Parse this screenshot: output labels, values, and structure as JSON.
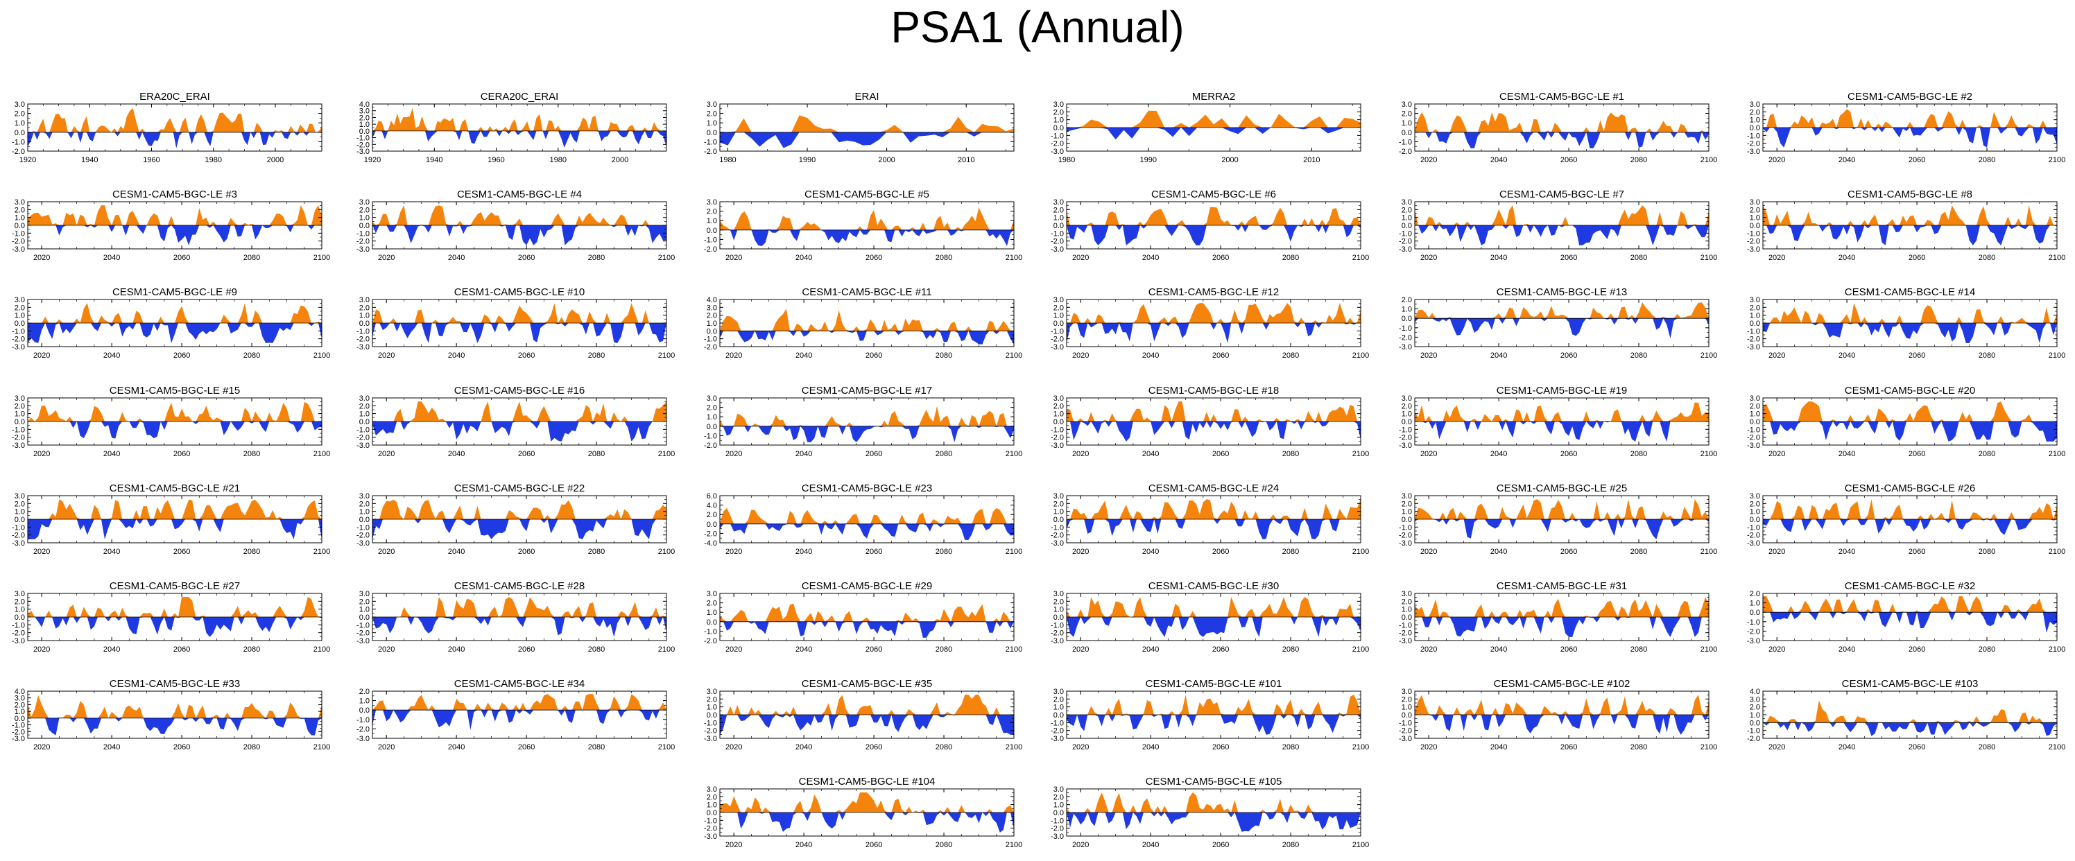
{
  "figure": {
    "title": "PSA1 (Annual)"
  },
  "colors": {
    "positive": "#f5840d",
    "negative": "#1f3ae2",
    "frame": "#000000"
  },
  "chart_data": [
    {
      "type": "area",
      "title": "ERA20C_ERAI",
      "x_range": [
        1920,
        2015
      ],
      "xticks": [
        1920,
        1940,
        1960,
        1980,
        2000
      ],
      "yticks": [
        -2.0,
        -1.0,
        0.0,
        1.0,
        2.0,
        3.0
      ],
      "ylim": [
        -2.0,
        3.0
      ],
      "seed": 11
    },
    {
      "type": "area",
      "title": "CERA20C_ERAI",
      "x_range": [
        1920,
        2015
      ],
      "xticks": [
        1920,
        1940,
        1960,
        1980,
        2000
      ],
      "yticks": [
        -3.0,
        -2.0,
        -1.0,
        0.0,
        1.0,
        2.0,
        3.0,
        4.0
      ],
      "ylim": [
        -3.0,
        4.0
      ],
      "seed": 12
    },
    {
      "type": "area",
      "title": "ERAI",
      "x_range": [
        1979,
        2016
      ],
      "xticks": [
        1980,
        1990,
        2000,
        2010
      ],
      "yticks": [
        -2.0,
        -1.0,
        0.0,
        1.0,
        2.0,
        3.0
      ],
      "ylim": [
        -2.0,
        3.0
      ],
      "seed": 13
    },
    {
      "type": "area",
      "title": "MERRA2",
      "x_range": [
        1980,
        2016
      ],
      "xticks": [
        1980,
        1990,
        2000,
        2010
      ],
      "yticks": [
        -3.0,
        -2.0,
        -1.0,
        0.0,
        1.0,
        2.0,
        3.0
      ],
      "ylim": [
        -3.0,
        3.0
      ],
      "seed": 14
    },
    {
      "type": "area",
      "title": "CESM1-CAM5-BGC-LE #1",
      "x_range": [
        2016,
        2100
      ],
      "xticks": [
        2020,
        2040,
        2060,
        2080,
        2100
      ],
      "yticks": [
        -2.0,
        -1.0,
        0.0,
        1.0,
        2.0,
        3.0
      ],
      "ylim": [
        -2.0,
        3.0
      ],
      "seed": 1
    },
    {
      "type": "area",
      "title": "CESM1-CAM5-BGC-LE #2",
      "x_range": [
        2016,
        2100
      ],
      "xticks": [
        2020,
        2040,
        2060,
        2080,
        2100
      ],
      "yticks": [
        -3.0,
        -2.0,
        -1.0,
        0.0,
        1.0,
        2.0,
        3.0
      ],
      "ylim": [
        -3.0,
        3.0
      ],
      "seed": 2
    },
    {
      "type": "area",
      "title": "CESM1-CAM5-BGC-LE #3",
      "x_range": [
        2016,
        2100
      ],
      "xticks": [
        2020,
        2040,
        2060,
        2080,
        2100
      ],
      "yticks": [
        -3.0,
        -2.0,
        -1.0,
        0.0,
        1.0,
        2.0,
        3.0
      ],
      "ylim": [
        -3.0,
        3.0
      ],
      "seed": 3
    },
    {
      "type": "area",
      "title": "CESM1-CAM5-BGC-LE #4",
      "x_range": [
        2016,
        2100
      ],
      "xticks": [
        2020,
        2040,
        2060,
        2080,
        2100
      ],
      "yticks": [
        -3.0,
        -2.0,
        -1.0,
        0.0,
        1.0,
        2.0,
        3.0
      ],
      "ylim": [
        -3.0,
        3.0
      ],
      "seed": 4
    },
    {
      "type": "area",
      "title": "CESM1-CAM5-BGC-LE #5",
      "x_range": [
        2016,
        2100
      ],
      "xticks": [
        2020,
        2040,
        2060,
        2080,
        2100
      ],
      "yticks": [
        -2.0,
        -1.0,
        0.0,
        1.0,
        2.0,
        3.0
      ],
      "ylim": [
        -2.0,
        3.0
      ],
      "seed": 5
    },
    {
      "type": "area",
      "title": "CESM1-CAM5-BGC-LE #6",
      "x_range": [
        2016,
        2100
      ],
      "xticks": [
        2020,
        2040,
        2060,
        2080,
        2100
      ],
      "yticks": [
        -3.0,
        -2.0,
        -1.0,
        0.0,
        1.0,
        2.0,
        3.0
      ],
      "ylim": [
        -3.0,
        3.0
      ],
      "seed": 6
    },
    {
      "type": "area",
      "title": "CESM1-CAM5-BGC-LE #7",
      "x_range": [
        2016,
        2100
      ],
      "xticks": [
        2020,
        2040,
        2060,
        2080,
        2100
      ],
      "yticks": [
        -3.0,
        -2.0,
        -1.0,
        0.0,
        1.0,
        2.0,
        3.0
      ],
      "ylim": [
        -3.0,
        3.0
      ],
      "seed": 7
    },
    {
      "type": "area",
      "title": "CESM1-CAM5-BGC-LE #8",
      "x_range": [
        2016,
        2100
      ],
      "xticks": [
        2020,
        2040,
        2060,
        2080,
        2100
      ],
      "yticks": [
        -3.0,
        -2.0,
        -1.0,
        0.0,
        1.0,
        2.0,
        3.0
      ],
      "ylim": [
        -3.0,
        3.0
      ],
      "seed": 8
    },
    {
      "type": "area",
      "title": "CESM1-CAM5-BGC-LE #9",
      "x_range": [
        2016,
        2100
      ],
      "xticks": [
        2020,
        2040,
        2060,
        2080,
        2100
      ],
      "yticks": [
        -3.0,
        -2.0,
        -1.0,
        0.0,
        1.0,
        2.0,
        3.0
      ],
      "ylim": [
        -3.0,
        3.0
      ],
      "seed": 9
    },
    {
      "type": "area",
      "title": "CESM1-CAM5-BGC-LE #10",
      "x_range": [
        2016,
        2100
      ],
      "xticks": [
        2020,
        2040,
        2060,
        2080,
        2100
      ],
      "yticks": [
        -3.0,
        -2.0,
        -1.0,
        0.0,
        1.0,
        2.0,
        3.0
      ],
      "ylim": [
        -3.0,
        3.0
      ],
      "seed": 10
    },
    {
      "type": "area",
      "title": "CESM1-CAM5-BGC-LE #11",
      "x_range": [
        2016,
        2100
      ],
      "xticks": [
        2020,
        2040,
        2060,
        2080,
        2100
      ],
      "yticks": [
        -2.0,
        -1.0,
        0.0,
        1.0,
        2.0,
        3.0,
        4.0
      ],
      "ylim": [
        -2.0,
        4.0
      ],
      "seed": 111
    },
    {
      "type": "area",
      "title": "CESM1-CAM5-BGC-LE #12",
      "x_range": [
        2016,
        2100
      ],
      "xticks": [
        2020,
        2040,
        2060,
        2080,
        2100
      ],
      "yticks": [
        -3.0,
        -2.0,
        -1.0,
        0.0,
        1.0,
        2.0,
        3.0
      ],
      "ylim": [
        -3.0,
        3.0
      ],
      "seed": 112
    },
    {
      "type": "area",
      "title": "CESM1-CAM5-BGC-LE #13",
      "x_range": [
        2016,
        2100
      ],
      "xticks": [
        2020,
        2040,
        2060,
        2080,
        2100
      ],
      "yticks": [
        -3.0,
        -2.0,
        -1.0,
        0.0,
        1.0,
        2.0
      ],
      "ylim": [
        -3.0,
        2.0
      ],
      "seed": 113
    },
    {
      "type": "area",
      "title": "CESM1-CAM5-BGC-LE #14",
      "x_range": [
        2016,
        2100
      ],
      "xticks": [
        2020,
        2040,
        2060,
        2080,
        2100
      ],
      "yticks": [
        -3.0,
        -2.0,
        -1.0,
        0.0,
        1.0,
        2.0,
        3.0
      ],
      "ylim": [
        -3.0,
        3.0
      ],
      "seed": 114
    },
    {
      "type": "area",
      "title": "CESM1-CAM5-BGC-LE #15",
      "x_range": [
        2016,
        2100
      ],
      "xticks": [
        2020,
        2040,
        2060,
        2080,
        2100
      ],
      "yticks": [
        -3.0,
        -2.0,
        -1.0,
        0.0,
        1.0,
        2.0,
        3.0
      ],
      "ylim": [
        -3.0,
        3.0
      ],
      "seed": 115
    },
    {
      "type": "area",
      "title": "CESM1-CAM5-BGC-LE #16",
      "x_range": [
        2016,
        2100
      ],
      "xticks": [
        2020,
        2040,
        2060,
        2080,
        2100
      ],
      "yticks": [
        -3.0,
        -2.0,
        -1.0,
        0.0,
        1.0,
        2.0,
        3.0
      ],
      "ylim": [
        -3.0,
        3.0
      ],
      "seed": 116
    },
    {
      "type": "area",
      "title": "CESM1-CAM5-BGC-LE #17",
      "x_range": [
        2016,
        2100
      ],
      "xticks": [
        2020,
        2040,
        2060,
        2080,
        2100
      ],
      "yticks": [
        -2.0,
        -1.0,
        0.0,
        1.0,
        2.0,
        3.0
      ],
      "ylim": [
        -2.0,
        3.0
      ],
      "seed": 117
    },
    {
      "type": "area",
      "title": "CESM1-CAM5-BGC-LE #18",
      "x_range": [
        2016,
        2100
      ],
      "xticks": [
        2020,
        2040,
        2060,
        2080,
        2100
      ],
      "yticks": [
        -3.0,
        -2.0,
        -1.0,
        0.0,
        1.0,
        2.0,
        3.0
      ],
      "ylim": [
        -3.0,
        3.0
      ],
      "seed": 118
    },
    {
      "type": "area",
      "title": "CESM1-CAM5-BGC-LE #19",
      "x_range": [
        2016,
        2100
      ],
      "xticks": [
        2020,
        2040,
        2060,
        2080,
        2100
      ],
      "yticks": [
        -3.0,
        -2.0,
        -1.0,
        0.0,
        1.0,
        2.0,
        3.0
      ],
      "ylim": [
        -3.0,
        3.0
      ],
      "seed": 119
    },
    {
      "type": "area",
      "title": "CESM1-CAM5-BGC-LE #20",
      "x_range": [
        2016,
        2100
      ],
      "xticks": [
        2020,
        2040,
        2060,
        2080,
        2100
      ],
      "yticks": [
        -3.0,
        -2.0,
        -1.0,
        0.0,
        1.0,
        2.0,
        3.0
      ],
      "ylim": [
        -3.0,
        3.0
      ],
      "seed": 120
    },
    {
      "type": "area",
      "title": "CESM1-CAM5-BGC-LE #21",
      "x_range": [
        2016,
        2100
      ],
      "xticks": [
        2020,
        2040,
        2060,
        2080,
        2100
      ],
      "yticks": [
        -3.0,
        -2.0,
        -1.0,
        0.0,
        1.0,
        2.0,
        3.0
      ],
      "ylim": [
        -3.0,
        3.0
      ],
      "seed": 121
    },
    {
      "type": "area",
      "title": "CESM1-CAM5-BGC-LE #22",
      "x_range": [
        2016,
        2100
      ],
      "xticks": [
        2020,
        2040,
        2060,
        2080,
        2100
      ],
      "yticks": [
        -3.0,
        -2.0,
        -1.0,
        0.0,
        1.0,
        2.0,
        3.0
      ],
      "ylim": [
        -3.0,
        3.0
      ],
      "seed": 122
    },
    {
      "type": "area",
      "title": "CESM1-CAM5-BGC-LE #23",
      "x_range": [
        2016,
        2100
      ],
      "xticks": [
        2020,
        2040,
        2060,
        2080,
        2100
      ],
      "yticks": [
        -4.0,
        -2.0,
        0.0,
        2.0,
        4.0,
        6.0
      ],
      "ylim": [
        -4.0,
        6.0
      ],
      "seed": 123
    },
    {
      "type": "area",
      "title": "CESM1-CAM5-BGC-LE #24",
      "x_range": [
        2016,
        2100
      ],
      "xticks": [
        2020,
        2040,
        2060,
        2080,
        2100
      ],
      "yticks": [
        -3.0,
        -2.0,
        -1.0,
        0.0,
        1.0,
        2.0,
        3.0
      ],
      "ylim": [
        -3.0,
        3.0
      ],
      "seed": 124
    },
    {
      "type": "area",
      "title": "CESM1-CAM5-BGC-LE #25",
      "x_range": [
        2016,
        2100
      ],
      "xticks": [
        2020,
        2040,
        2060,
        2080,
        2100
      ],
      "yticks": [
        -3.0,
        -2.0,
        -1.0,
        0.0,
        1.0,
        2.0,
        3.0
      ],
      "ylim": [
        -3.0,
        3.0
      ],
      "seed": 125
    },
    {
      "type": "area",
      "title": "CESM1-CAM5-BGC-LE #26",
      "x_range": [
        2016,
        2100
      ],
      "xticks": [
        2020,
        2040,
        2060,
        2080,
        2100
      ],
      "yticks": [
        -3.0,
        -2.0,
        -1.0,
        0.0,
        1.0,
        2.0,
        3.0
      ],
      "ylim": [
        -3.0,
        3.0
      ],
      "seed": 126
    },
    {
      "type": "area",
      "title": "CESM1-CAM5-BGC-LE #27",
      "x_range": [
        2016,
        2100
      ],
      "xticks": [
        2020,
        2040,
        2060,
        2080,
        2100
      ],
      "yticks": [
        -3.0,
        -2.0,
        -1.0,
        0.0,
        1.0,
        2.0,
        3.0
      ],
      "ylim": [
        -3.0,
        3.0
      ],
      "seed": 127
    },
    {
      "type": "area",
      "title": "CESM1-CAM5-BGC-LE #28",
      "x_range": [
        2016,
        2100
      ],
      "xticks": [
        2020,
        2040,
        2060,
        2080,
        2100
      ],
      "yticks": [
        -3.0,
        -2.0,
        -1.0,
        0.0,
        1.0,
        2.0,
        3.0
      ],
      "ylim": [
        -3.0,
        3.0
      ],
      "seed": 128
    },
    {
      "type": "area",
      "title": "CESM1-CAM5-BGC-LE #29",
      "x_range": [
        2016,
        2100
      ],
      "xticks": [
        2020,
        2040,
        2060,
        2080,
        2100
      ],
      "yticks": [
        -2.0,
        -1.0,
        0.0,
        1.0,
        2.0,
        3.0
      ],
      "ylim": [
        -2.0,
        3.0
      ],
      "seed": 129
    },
    {
      "type": "area",
      "title": "CESM1-CAM5-BGC-LE #30",
      "x_range": [
        2016,
        2100
      ],
      "xticks": [
        2020,
        2040,
        2060,
        2080,
        2100
      ],
      "yticks": [
        -3.0,
        -2.0,
        -1.0,
        0.0,
        1.0,
        2.0,
        3.0
      ],
      "ylim": [
        -3.0,
        3.0
      ],
      "seed": 130
    },
    {
      "type": "area",
      "title": "CESM1-CAM5-BGC-LE #31",
      "x_range": [
        2016,
        2100
      ],
      "xticks": [
        2020,
        2040,
        2060,
        2080,
        2100
      ],
      "yticks": [
        -3.0,
        -2.0,
        -1.0,
        0.0,
        1.0,
        2.0,
        3.0
      ],
      "ylim": [
        -3.0,
        3.0
      ],
      "seed": 131
    },
    {
      "type": "area",
      "title": "CESM1-CAM5-BGC-LE #32",
      "x_range": [
        2016,
        2100
      ],
      "xticks": [
        2020,
        2040,
        2060,
        2080,
        2100
      ],
      "yticks": [
        -3.0,
        -2.0,
        -1.0,
        0.0,
        1.0,
        2.0
      ],
      "ylim": [
        -3.0,
        2.0
      ],
      "seed": 132
    },
    {
      "type": "area",
      "title": "CESM1-CAM5-BGC-LE #33",
      "x_range": [
        2016,
        2100
      ],
      "xticks": [
        2020,
        2040,
        2060,
        2080,
        2100
      ],
      "yticks": [
        -3.0,
        -2.0,
        -1.0,
        0.0,
        1.0,
        2.0,
        3.0,
        4.0
      ],
      "ylim": [
        -3.0,
        4.0
      ],
      "seed": 133
    },
    {
      "type": "area",
      "title": "CESM1-CAM5-BGC-LE #34",
      "x_range": [
        2016,
        2100
      ],
      "xticks": [
        2020,
        2040,
        2060,
        2080,
        2100
      ],
      "yticks": [
        -3.0,
        -2.0,
        -1.0,
        0.0,
        1.0,
        2.0
      ],
      "ylim": [
        -3.0,
        2.0
      ],
      "seed": 134
    },
    {
      "type": "area",
      "title": "CESM1-CAM5-BGC-LE #35",
      "x_range": [
        2016,
        2100
      ],
      "xticks": [
        2020,
        2040,
        2060,
        2080,
        2100
      ],
      "yticks": [
        -3.0,
        -2.0,
        -1.0,
        0.0,
        1.0,
        2.0,
        3.0
      ],
      "ylim": [
        -3.0,
        3.0
      ],
      "seed": 135
    },
    {
      "type": "area",
      "title": "CESM1-CAM5-BGC-LE #101",
      "x_range": [
        2016,
        2100
      ],
      "xticks": [
        2020,
        2040,
        2060,
        2080,
        2100
      ],
      "yticks": [
        -3.0,
        -2.0,
        -1.0,
        0.0,
        1.0,
        2.0,
        3.0
      ],
      "ylim": [
        -3.0,
        3.0
      ],
      "seed": 201
    },
    {
      "type": "area",
      "title": "CESM1-CAM5-BGC-LE #102",
      "x_range": [
        2016,
        2100
      ],
      "xticks": [
        2020,
        2040,
        2060,
        2080,
        2100
      ],
      "yticks": [
        -3.0,
        -2.0,
        -1.0,
        0.0,
        1.0,
        2.0,
        3.0
      ],
      "ylim": [
        -3.0,
        3.0
      ],
      "seed": 202
    },
    {
      "type": "area",
      "title": "CESM1-CAM5-BGC-LE #103",
      "x_range": [
        2016,
        2100
      ],
      "xticks": [
        2020,
        2040,
        2060,
        2080,
        2100
      ],
      "yticks": [
        -2.0,
        -1.0,
        0.0,
        1.0,
        2.0,
        3.0,
        4.0
      ],
      "ylim": [
        -2.0,
        4.0
      ],
      "seed": 203
    },
    {
      "type": "area",
      "title": "CESM1-CAM5-BGC-LE #104",
      "x_range": [
        2016,
        2100
      ],
      "xticks": [
        2020,
        2040,
        2060,
        2080,
        2100
      ],
      "yticks": [
        -3.0,
        -2.0,
        -1.0,
        0.0,
        1.0,
        2.0,
        3.0
      ],
      "ylim": [
        -3.0,
        3.0
      ],
      "seed": 204
    },
    {
      "type": "area",
      "title": "CESM1-CAM5-BGC-LE #105",
      "x_range": [
        2016,
        2100
      ],
      "xticks": [
        2020,
        2040,
        2060,
        2080,
        2100
      ],
      "yticks": [
        -3.0,
        -2.0,
        -1.0,
        0.0,
        1.0,
        2.0,
        3.0
      ],
      "ylim": [
        -3.0,
        3.0
      ],
      "seed": 205
    }
  ]
}
